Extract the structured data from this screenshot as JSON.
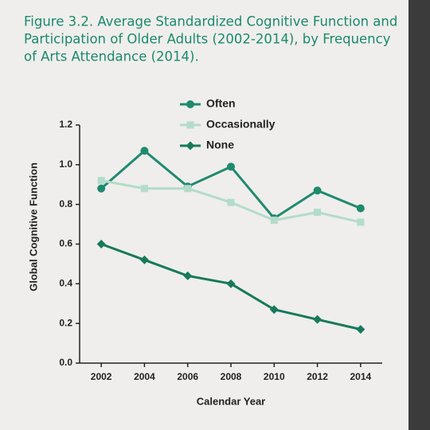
{
  "chart_data": {
    "type": "line",
    "title": [
      "Figure 3.2. Average Standardized Cognitive Function and",
      "Participation of Older Adults (2002-2014), by Frequency",
      "of Arts Attendance (2014)."
    ],
    "x_label": "Calendar Year",
    "y_label": "Global Cognitive Function",
    "x": [
      2002,
      2004,
      2006,
      2008,
      2010,
      2012,
      2014
    ],
    "xlim": [
      2001,
      2015
    ],
    "xticks": [
      2002,
      2004,
      2006,
      2008,
      2010,
      2012,
      2014
    ],
    "ylim": [
      0,
      1.2
    ],
    "yticks": [
      {
        "value": 0,
        "label": "0.0"
      },
      0.2,
      0.4,
      0.6,
      0.8,
      {
        "value": 1,
        "label": "1.0"
      },
      1.2
    ],
    "series": [
      {
        "name": "Often",
        "color": "#1f8a6e",
        "marker": "circle",
        "values": [
          0.88,
          1.07,
          0.89,
          0.99,
          0.73,
          0.87,
          0.78
        ]
      },
      {
        "name": "Occasionally",
        "color": "#b3dcca",
        "marker": "square",
        "values": [
          0.92,
          0.88,
          0.88,
          0.81,
          0.72,
          0.76,
          0.71
        ]
      },
      {
        "name": "None",
        "color": "#167a5b",
        "marker": "diamond",
        "values": [
          0.6,
          0.52,
          0.44,
          0.4,
          0.27,
          0.22,
          0.17
        ]
      }
    ]
  }
}
